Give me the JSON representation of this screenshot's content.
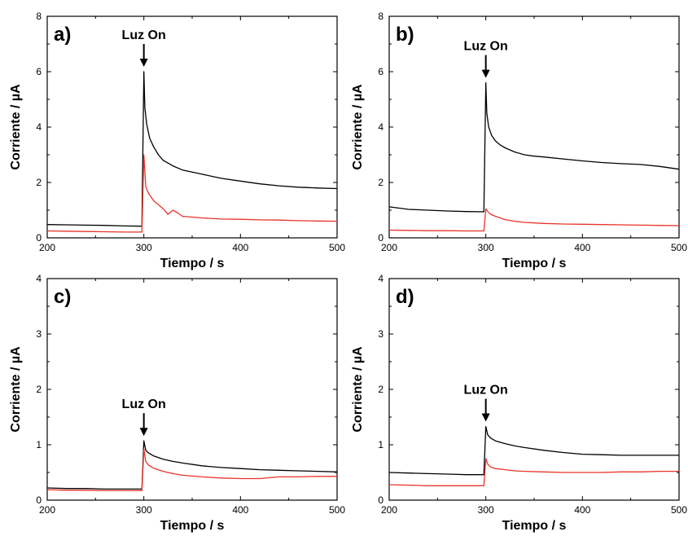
{
  "colors": {
    "black_series": "#000000",
    "red_series": "#e8332a"
  },
  "chart_data": [
    {
      "type": "line",
      "panel_label": "a)",
      "xlabel": "Tiempo / s",
      "ylabel": "Corriente / µA",
      "xlim": [
        200,
        500
      ],
      "ylim": [
        0,
        8
      ],
      "xticks": [
        200,
        300,
        400,
        500
      ],
      "yticks": [
        0,
        2,
        4,
        6,
        8
      ],
      "grid": false,
      "annotation": {
        "text": "Luz On",
        "x": 300
      },
      "series": [
        {
          "color": "#000000",
          "x": [
            200,
            220,
            240,
            260,
            280,
            298,
            300,
            301,
            303,
            306,
            310,
            315,
            320,
            330,
            340,
            360,
            380,
            400,
            420,
            440,
            460,
            480,
            500
          ],
          "y": [
            0.48,
            0.47,
            0.46,
            0.45,
            0.43,
            0.42,
            6.0,
            4.7,
            4.1,
            3.6,
            3.3,
            3.0,
            2.8,
            2.6,
            2.45,
            2.3,
            2.15,
            2.05,
            1.95,
            1.88,
            1.83,
            1.8,
            1.78
          ]
        },
        {
          "color": "#e8332a",
          "x": [
            200,
            220,
            240,
            260,
            280,
            298,
            300,
            302,
            305,
            310,
            315,
            320,
            325,
            330,
            335,
            340,
            360,
            380,
            400,
            420,
            440,
            460,
            480,
            500
          ],
          "y": [
            0.25,
            0.24,
            0.23,
            0.22,
            0.21,
            0.21,
            3.0,
            1.85,
            1.6,
            1.35,
            1.2,
            1.05,
            0.85,
            1.0,
            0.9,
            0.78,
            0.72,
            0.68,
            0.67,
            0.65,
            0.64,
            0.62,
            0.61,
            0.6
          ]
        }
      ]
    },
    {
      "type": "line",
      "panel_label": "b)",
      "xlabel": "Tiempo / s",
      "ylabel": "Corriente / µA",
      "xlim": [
        200,
        500
      ],
      "ylim": [
        0,
        8
      ],
      "xticks": [
        200,
        300,
        400,
        500
      ],
      "yticks": [
        0,
        2,
        4,
        6,
        8
      ],
      "grid": false,
      "annotation": {
        "text": "Luz On",
        "x": 300
      },
      "series": [
        {
          "color": "#000000",
          "x": [
            200,
            220,
            240,
            260,
            280,
            298,
            300,
            301,
            303,
            306,
            310,
            315,
            320,
            330,
            340,
            350,
            360,
            380,
            400,
            420,
            440,
            460,
            480,
            500
          ],
          "y": [
            1.12,
            1.03,
            1.0,
            0.97,
            0.95,
            0.94,
            5.6,
            4.5,
            4.0,
            3.7,
            3.5,
            3.35,
            3.25,
            3.1,
            3.0,
            2.95,
            2.92,
            2.85,
            2.78,
            2.72,
            2.68,
            2.65,
            2.58,
            2.48
          ]
        },
        {
          "color": "#e8332a",
          "x": [
            200,
            220,
            240,
            260,
            280,
            298,
            300,
            302,
            305,
            310,
            315,
            320,
            330,
            340,
            360,
            380,
            400,
            420,
            440,
            460,
            480,
            500
          ],
          "y": [
            0.28,
            0.27,
            0.26,
            0.26,
            0.25,
            0.25,
            1.05,
            0.95,
            0.85,
            0.78,
            0.72,
            0.66,
            0.6,
            0.56,
            0.52,
            0.5,
            0.49,
            0.48,
            0.47,
            0.46,
            0.45,
            0.44
          ]
        }
      ]
    },
    {
      "type": "line",
      "panel_label": "c)",
      "xlabel": "Tiempo / s",
      "ylabel": "Corriente / µA",
      "xlim": [
        200,
        500
      ],
      "ylim": [
        0,
        4
      ],
      "xticks": [
        200,
        300,
        400,
        500
      ],
      "yticks": [
        0,
        1,
        2,
        3,
        4
      ],
      "grid": false,
      "annotation": {
        "text": "Luz On",
        "x": 300
      },
      "series": [
        {
          "color": "#000000",
          "x": [
            200,
            220,
            240,
            260,
            280,
            298,
            300,
            302,
            305,
            310,
            320,
            330,
            340,
            360,
            380,
            400,
            420,
            440,
            460,
            480,
            500
          ],
          "y": [
            0.22,
            0.21,
            0.21,
            0.2,
            0.2,
            0.2,
            1.07,
            0.9,
            0.85,
            0.8,
            0.74,
            0.7,
            0.67,
            0.62,
            0.59,
            0.57,
            0.55,
            0.54,
            0.53,
            0.52,
            0.51
          ]
        },
        {
          "color": "#e8332a",
          "x": [
            200,
            220,
            240,
            260,
            280,
            298,
            300,
            302,
            305,
            310,
            320,
            330,
            340,
            360,
            380,
            400,
            420,
            440,
            460,
            480,
            500
          ],
          "y": [
            0.19,
            0.18,
            0.18,
            0.17,
            0.17,
            0.17,
            0.92,
            0.7,
            0.63,
            0.58,
            0.52,
            0.48,
            0.45,
            0.42,
            0.4,
            0.39,
            0.39,
            0.42,
            0.42,
            0.43,
            0.43
          ]
        }
      ]
    },
    {
      "type": "line",
      "panel_label": "d)",
      "xlabel": "Tiempo / s",
      "ylabel": "Corriente / µA",
      "xlim": [
        200,
        500
      ],
      "ylim": [
        0,
        4
      ],
      "xticks": [
        200,
        300,
        400,
        500
      ],
      "yticks": [
        0,
        1,
        2,
        3,
        4
      ],
      "grid": false,
      "annotation": {
        "text": "Luz On",
        "x": 300
      },
      "series": [
        {
          "color": "#000000",
          "x": [
            200,
            220,
            240,
            260,
            280,
            298,
            300,
            302,
            305,
            310,
            320,
            330,
            340,
            360,
            380,
            400,
            420,
            440,
            460,
            480,
            500
          ],
          "y": [
            0.5,
            0.49,
            0.48,
            0.47,
            0.46,
            0.46,
            1.33,
            1.18,
            1.12,
            1.07,
            1.02,
            0.98,
            0.95,
            0.9,
            0.86,
            0.83,
            0.82,
            0.81,
            0.81,
            0.81,
            0.81
          ]
        },
        {
          "color": "#e8332a",
          "x": [
            200,
            220,
            240,
            260,
            280,
            298,
            300,
            302,
            305,
            310,
            320,
            330,
            340,
            360,
            380,
            400,
            420,
            440,
            460,
            480,
            500
          ],
          "y": [
            0.28,
            0.27,
            0.26,
            0.26,
            0.26,
            0.26,
            0.75,
            0.65,
            0.6,
            0.57,
            0.55,
            0.53,
            0.52,
            0.51,
            0.5,
            0.5,
            0.5,
            0.51,
            0.51,
            0.52,
            0.52
          ]
        }
      ]
    }
  ]
}
